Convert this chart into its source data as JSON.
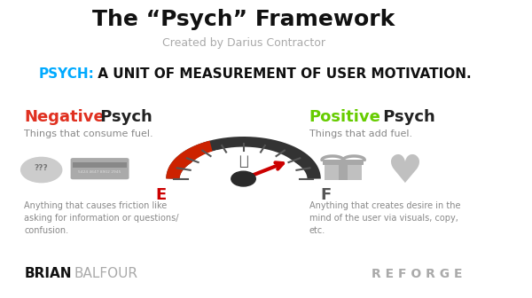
{
  "title": "The “Psych” Framework",
  "subtitle": "Created by Darius Contractor",
  "psych_label_colored": "PSYCH:",
  "psych_label_rest": " A UNIT OF MEASUREMENT OF USER MOTIVATION.",
  "psych_color": "#00aaff",
  "neg_title_colored": "Negative",
  "neg_title_rest": " Psych",
  "neg_color": "#e03020",
  "neg_subtitle": "Things that consume fuel.",
  "neg_desc": "Anything that causes friction like\nasking for information or questions/\nconfusion.",
  "pos_title_colored": "Positive",
  "pos_title_rest": " Psych",
  "pos_color": "#66cc00",
  "pos_subtitle": "Things that add fuel.",
  "pos_desc": "Anything that creates desire in the\nmind of the user via visuals, copy,\netc.",
  "brian_bold": "BRIAN",
  "brian_rest": "BALFOUR",
  "reforge": "R E F O R G E",
  "bg_color": "#ffffff",
  "gauge_arc_color": "#333333",
  "gauge_red_color": "#cc0000",
  "needle_color": "#cc0000",
  "e_label_color": "#cc0000",
  "f_label_color": "#555555"
}
